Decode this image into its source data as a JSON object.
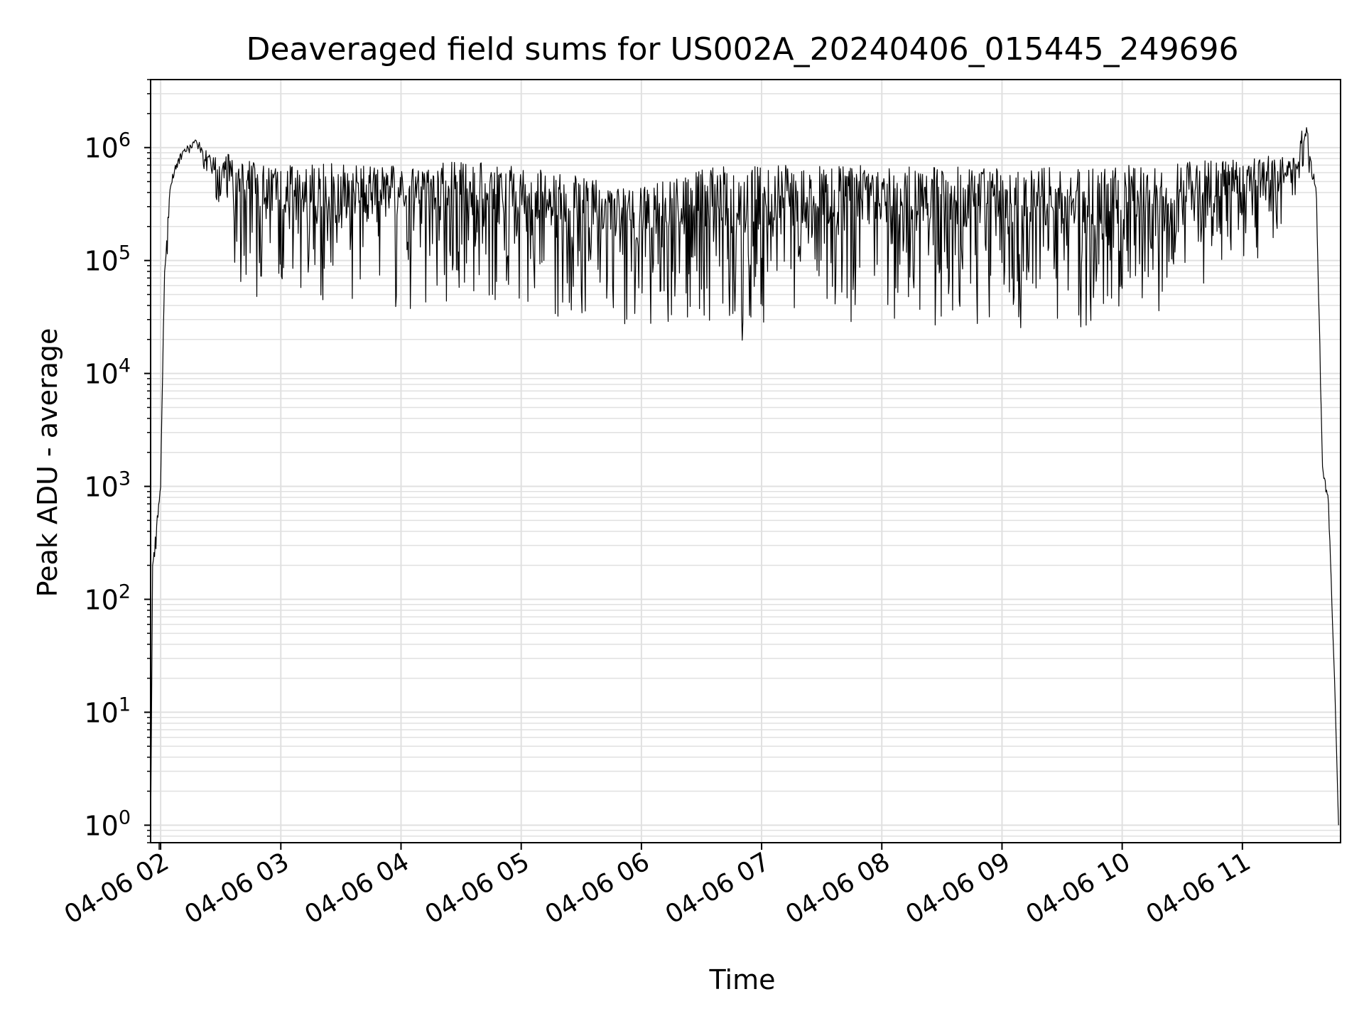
{
  "chart_data": {
    "type": "line",
    "title": "Deaveraged field sums for US002A_20240406_015445_249696",
    "xlabel": "Time",
    "ylabel": "Peak ADU - average",
    "x_range": [
      "2024-04-06 01:55",
      "2024-04-06 11:49"
    ],
    "y_range": [
      0.7,
      4000000
    ],
    "y_scale": "log",
    "grid": true,
    "grid_minor_y": true,
    "line_color": "#000000",
    "grid_color": "#e0e0e0",
    "x_ticks": [
      {
        "value": "2024-04-06 02:00",
        "label": "04-06 02"
      },
      {
        "value": "2024-04-06 03:00",
        "label": "04-06 03"
      },
      {
        "value": "2024-04-06 04:00",
        "label": "04-06 04"
      },
      {
        "value": "2024-04-06 05:00",
        "label": "04-06 05"
      },
      {
        "value": "2024-04-06 06:00",
        "label": "04-06 06"
      },
      {
        "value": "2024-04-06 07:00",
        "label": "04-06 07"
      },
      {
        "value": "2024-04-06 08:00",
        "label": "04-06 08"
      },
      {
        "value": "2024-04-06 09:00",
        "label": "04-06 09"
      },
      {
        "value": "2024-04-06 10:00",
        "label": "04-06 10"
      },
      {
        "value": "2024-04-06 11:00",
        "label": "04-06 11"
      }
    ],
    "y_ticks": [
      {
        "value": 1,
        "base": "10",
        "exp": "0"
      },
      {
        "value": 10,
        "base": "10",
        "exp": "1"
      },
      {
        "value": 100,
        "base": "10",
        "exp": "2"
      },
      {
        "value": 1000,
        "base": "10",
        "exp": "3"
      },
      {
        "value": 10000,
        "base": "10",
        "exp": "4"
      },
      {
        "value": 100000,
        "base": "10",
        "exp": "5"
      },
      {
        "value": 1000000,
        "base": "10",
        "exp": "6"
      }
    ],
    "series": [
      {
        "envelope": [
          {
            "t": "2024-04-06 01:55",
            "low": 0.8,
            "high": 0.8
          },
          {
            "t": "2024-04-06 01:56",
            "low": 150,
            "high": 200
          },
          {
            "t": "2024-04-06 01:58",
            "low": 300,
            "high": 500
          },
          {
            "t": "2024-04-06 02:00",
            "low": 600,
            "high": 1100
          },
          {
            "t": "2024-04-06 02:02",
            "low": 20000,
            "high": 110000
          },
          {
            "t": "2024-04-06 02:05",
            "low": 300000,
            "high": 500000
          },
          {
            "t": "2024-04-06 02:08",
            "low": 600000,
            "high": 800000
          },
          {
            "t": "2024-04-06 02:12",
            "low": 800000,
            "high": 1000000
          },
          {
            "t": "2024-04-06 02:18",
            "low": 800000,
            "high": 1200000
          },
          {
            "t": "2024-04-06 02:24",
            "low": 400000,
            "high": 900000
          },
          {
            "t": "2024-04-06 02:30",
            "low": 300000,
            "high": 800000
          },
          {
            "t": "2024-04-06 02:35",
            "low": 100000,
            "high": 900000
          },
          {
            "t": "2024-04-06 02:40",
            "low": 50000,
            "high": 800000
          },
          {
            "t": "2024-04-06 03:00",
            "low": 40000,
            "high": 700000
          },
          {
            "t": "2024-04-06 03:20",
            "low": 30000,
            "high": 750000
          },
          {
            "t": "2024-04-06 04:00",
            "low": 35000,
            "high": 700000
          },
          {
            "t": "2024-04-06 04:30",
            "low": 40000,
            "high": 750000
          },
          {
            "t": "2024-04-06 05:00",
            "low": 35000,
            "high": 700000
          },
          {
            "t": "2024-04-06 05:30",
            "low": 28000,
            "high": 550000
          },
          {
            "t": "2024-04-06 06:00",
            "low": 25000,
            "high": 450000
          },
          {
            "t": "2024-04-06 06:30",
            "low": 22000,
            "high": 650000
          },
          {
            "t": "2024-04-06 06:50",
            "low": 18000,
            "high": 700000
          },
          {
            "t": "2024-04-06 07:30",
            "low": 25000,
            "high": 700000
          },
          {
            "t": "2024-04-06 08:00",
            "low": 25000,
            "high": 700000
          },
          {
            "t": "2024-04-06 08:40",
            "low": 18000,
            "high": 700000
          },
          {
            "t": "2024-04-06 09:00",
            "low": 25000,
            "high": 650000
          },
          {
            "t": "2024-04-06 09:50",
            "low": 20000,
            "high": 700000
          },
          {
            "t": "2024-04-06 10:20",
            "low": 28000,
            "high": 700000
          },
          {
            "t": "2024-04-06 10:40",
            "low": 60000,
            "high": 800000
          },
          {
            "t": "2024-04-06 11:00",
            "low": 80000,
            "high": 800000
          },
          {
            "t": "2024-04-06 11:20",
            "low": 150000,
            "high": 900000
          },
          {
            "t": "2024-04-06 11:27",
            "low": 200000,
            "high": 800000
          },
          {
            "t": "2024-04-06 11:31",
            "low": 600000,
            "high": 2000000
          },
          {
            "t": "2024-04-06 11:34",
            "low": 500000,
            "high": 1000000
          },
          {
            "t": "2024-04-06 11:37",
            "low": 200000,
            "high": 400000
          },
          {
            "t": "2024-04-06 11:40",
            "low": 1500,
            "high": 1500
          },
          {
            "t": "2024-04-06 11:43",
            "low": 500,
            "high": 800
          },
          {
            "t": "2024-04-06 11:46",
            "low": 20,
            "high": 20
          },
          {
            "t": "2024-04-06 11:48",
            "low": 1,
            "high": 1
          }
        ]
      }
    ]
  }
}
